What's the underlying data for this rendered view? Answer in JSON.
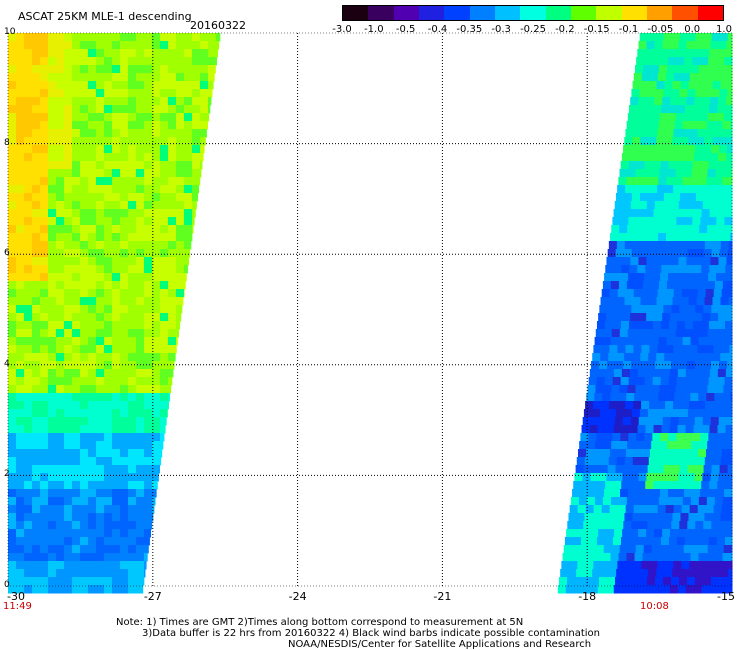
{
  "header": {
    "title": "ASCAT 25KM MLE-1 descending",
    "date": "20160322"
  },
  "colorbar": {
    "labels": [
      "-3.0",
      "-1.0",
      "-0.5",
      "-0.4",
      "-0.35",
      "-0.3",
      "-0.25",
      "-0.2",
      "-0.15",
      "-0.1",
      "-0.05",
      "0.0",
      "1.0"
    ],
    "colors": [
      "#1a0010",
      "#3a0060",
      "#5000b0",
      "#2020e0",
      "#0040ff",
      "#0080ff",
      "#00c0ff",
      "#00ffe0",
      "#00ff80",
      "#60ff00",
      "#c0ff00",
      "#ffe000",
      "#ffa000",
      "#ff5000",
      "#ff0000"
    ]
  },
  "map": {
    "x_axis_labels": [
      "-30",
      "-27",
      "-24",
      "-21",
      "-18",
      "-15"
    ],
    "y_axis_labels": [
      "0",
      "2",
      "4",
      "6",
      "8",
      "10"
    ],
    "lon_range": [
      -30,
      -15
    ],
    "lat_range": [
      0,
      10
    ],
    "swath_times": {
      "left": "11:49",
      "right": "10:08"
    },
    "swaths": {
      "west": {
        "top_edge_lon": -25.6,
        "bottom_edge_lon": -27.2
      },
      "east": {
        "top_edge_lon": -16.9,
        "bottom_edge_lon": -18.6
      }
    }
  },
  "notes": {
    "line1": "Note: 1) Times are GMT 2)Times along bottom correspond to measurement at 5N",
    "line2": "3)Data buffer is 22 hrs from 20160322 4) Black wind barbs indicate possible contamination",
    "line3": "NOAA/NESDIS/Center for Satellite Applications and Research"
  }
}
